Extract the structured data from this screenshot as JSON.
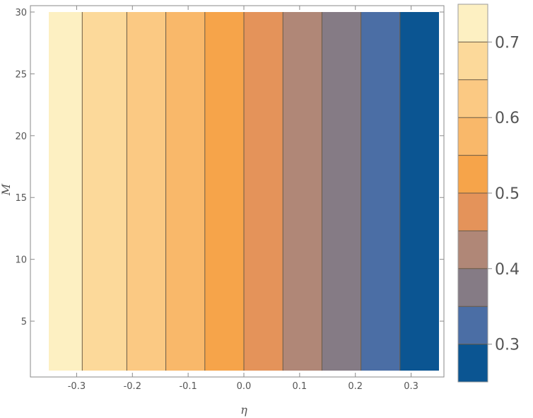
{
  "chart_data": {
    "type": "heatmap",
    "subtype": "contour",
    "title": "",
    "xlabel": "η",
    "ylabel": "M",
    "xlim": [
      -0.35,
      0.35
    ],
    "ylim": [
      1,
      30
    ],
    "x_ticks": [
      -0.3,
      -0.2,
      -0.1,
      0.0,
      0.1,
      0.2,
      0.3
    ],
    "x_tick_labels": [
      "-0.3",
      "-0.2",
      "-0.1",
      "0.0",
      "0.1",
      "0.2",
      "0.3"
    ],
    "y_ticks": [
      5,
      10,
      15,
      20,
      25,
      30
    ],
    "y_tick_labels": [
      "5",
      "10",
      "15",
      "20",
      "25",
      "30"
    ],
    "contour_boundaries_x": [
      -0.35,
      -0.29,
      -0.21,
      -0.14,
      -0.07,
      0.0,
      0.07,
      0.14,
      0.21,
      0.28,
      0.35
    ],
    "band_colors": [
      "#fdf0c2",
      "#fcd99a",
      "#fbc983",
      "#f9b86a",
      "#f6a44a",
      "#e4935a",
      "#b08777",
      "#857b85",
      "#4b6ea5",
      "#0b5592"
    ],
    "colorbar": {
      "range": [
        0.25,
        0.75
      ],
      "levels": [
        0.25,
        0.3,
        0.35,
        0.4,
        0.45,
        0.5,
        0.55,
        0.6,
        0.65,
        0.7,
        0.75
      ],
      "band_colors": [
        "#0b5592",
        "#4b6ea5",
        "#857b85",
        "#b08777",
        "#e4935a",
        "#f6a44a",
        "#f9b86a",
        "#fbc983",
        "#fcd99a",
        "#fdf0c2"
      ],
      "tick_values": [
        0.3,
        0.4,
        0.5,
        0.6,
        0.7
      ],
      "tick_labels": [
        "0.3",
        "0.4",
        "0.5",
        "0.6",
        "0.7"
      ]
    },
    "grid": false,
    "legend": "colorbar-right"
  }
}
